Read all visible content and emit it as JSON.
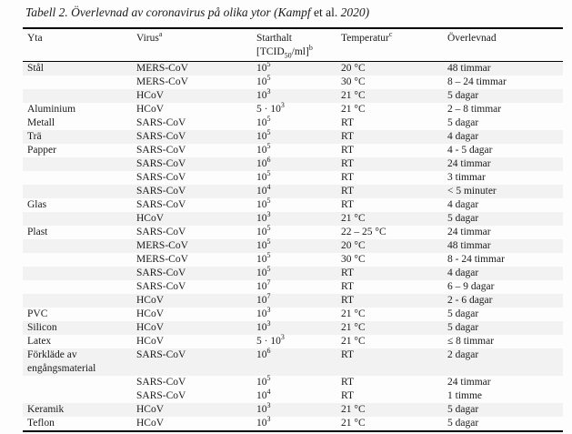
{
  "title": {
    "part1_italic": "Tabell 2. Överlevnad av coronavirus på olika ytor (Kampf ",
    "etal_upright": "et al. ",
    "part2_italic": "2020)"
  },
  "table": {
    "headers": {
      "yta": "Yta",
      "virus": "Virus",
      "virus_sup": "a",
      "starthalt_line1": "Starthalt",
      "starthalt_line2_pre": "[TCID",
      "starthalt_line2_sub": "50",
      "starthalt_line2_post": "/ml]",
      "starthalt_sup": "b",
      "temperatur": "Temperatur",
      "temperatur_sup": "c",
      "overlevnad": "Överlevnad"
    },
    "rows": [
      {
        "yta": "Stål",
        "virus": "MERS-CoV",
        "halt_base": "10",
        "halt_exp": "5",
        "temp": "20 °C",
        "surv": "48 timmar",
        "shaded": true
      },
      {
        "yta": "",
        "virus": "MERS-CoV",
        "halt_base": "10",
        "halt_exp": "5",
        "temp": "30 °C",
        "surv": "8 – 24 timmar",
        "shaded": false
      },
      {
        "yta": "",
        "virus": "HCoV",
        "halt_base": "10",
        "halt_exp": "3",
        "temp": "21 °C",
        "surv": "5 dagar",
        "shaded": true
      },
      {
        "yta": "Aluminium",
        "virus": "HCoV",
        "halt_base": "5 · 10",
        "halt_exp": "3",
        "temp": "21 °C",
        "surv": "2 – 8 timmar",
        "shaded": false
      },
      {
        "yta": "Metall",
        "virus": "SARS-CoV",
        "halt_base": "10",
        "halt_exp": "5",
        "temp": "RT",
        "surv": "5 dagar",
        "shaded": false
      },
      {
        "yta": "Trä",
        "virus": "SARS-CoV",
        "halt_base": "10",
        "halt_exp": "5",
        "temp": "RT",
        "surv": "4 dagar",
        "shaded": true
      },
      {
        "yta": "Papper",
        "virus": "SARS-CoV",
        "halt_base": "10",
        "halt_exp": "5",
        "temp": "RT",
        "surv": "4 - 5 dagar",
        "shaded": false
      },
      {
        "yta": "",
        "virus": "SARS-CoV",
        "halt_base": "10",
        "halt_exp": "6",
        "temp": "RT",
        "surv": "24 timmar",
        "shaded": true
      },
      {
        "yta": "",
        "virus": "SARS-CoV",
        "halt_base": "10",
        "halt_exp": "5",
        "temp": "RT",
        "surv": "3 timmar",
        "shaded": false
      },
      {
        "yta": "",
        "virus": "SARS-CoV",
        "halt_base": "10",
        "halt_exp": "4",
        "temp": "RT",
        "surv": "< 5 minuter",
        "shaded": true
      },
      {
        "yta": "Glas",
        "virus": "SARS-CoV",
        "halt_base": "10",
        "halt_exp": "5",
        "temp": "RT",
        "surv": "4 dagar",
        "shaded": false
      },
      {
        "yta": "",
        "virus": "HCoV",
        "halt_base": "10",
        "halt_exp": "3",
        "temp": "21 °C",
        "surv": "5 dagar",
        "shaded": true
      },
      {
        "yta": "Plast",
        "virus": "SARS-CoV",
        "halt_base": "10",
        "halt_exp": "5",
        "temp": "22 – 25 °C",
        "surv": "24 timmar",
        "shaded": false
      },
      {
        "yta": "",
        "virus": "MERS-CoV",
        "halt_base": "10",
        "halt_exp": "5",
        "temp": "20 °C",
        "surv": "48 timmar",
        "shaded": true
      },
      {
        "yta": "",
        "virus": "MERS-CoV",
        "halt_base": "10",
        "halt_exp": "5",
        "temp": "30 °C",
        "surv": "8 - 24 timmar",
        "shaded": false
      },
      {
        "yta": "",
        "virus": "SARS-CoV",
        "halt_base": "10",
        "halt_exp": "5",
        "temp": "RT",
        "surv": "4 dagar",
        "shaded": true
      },
      {
        "yta": "",
        "virus": "SARS-CoV",
        "halt_base": "10",
        "halt_exp": "7",
        "temp": "RT",
        "surv": "6 – 9 dagar",
        "shaded": false
      },
      {
        "yta": "",
        "virus": "HCoV",
        "halt_base": "10",
        "halt_exp": "7",
        "temp": "RT",
        "surv": "2 - 6 dagar",
        "shaded": true
      },
      {
        "yta": "PVC",
        "virus": "HCoV",
        "halt_base": "10",
        "halt_exp": "3",
        "temp": "21 °C",
        "surv": "5 dagar",
        "shaded": false
      },
      {
        "yta": "Silicon",
        "virus": "HCoV",
        "halt_base": "10",
        "halt_exp": "3",
        "temp": "21 °C",
        "surv": "5 dagar",
        "shaded": true
      },
      {
        "yta": "Latex",
        "virus": "HCoV",
        "halt_base": "5 · 10",
        "halt_exp": "3",
        "temp": "21 °C",
        "surv": "≤ 8 timmar",
        "shaded": false
      },
      {
        "yta": "Förkläde av engångsmaterial",
        "virus": "SARS-CoV",
        "halt_base": "10",
        "halt_exp": "6",
        "temp": "RT",
        "surv": "2 dagar",
        "shaded": true
      },
      {
        "yta": "",
        "virus": "SARS-CoV",
        "halt_base": "10",
        "halt_exp": "5",
        "temp": "RT",
        "surv": "24 timmar",
        "shaded": false
      },
      {
        "yta": "",
        "virus": "SARS-CoV",
        "halt_base": "10",
        "halt_exp": "4",
        "temp": "RT",
        "surv": "1 timme",
        "shaded": false
      },
      {
        "yta": "Keramik",
        "virus": "HCoV",
        "halt_base": "10",
        "halt_exp": "3",
        "temp": "21 °C",
        "surv": "5 dagar",
        "shaded": true
      },
      {
        "yta": "Teflon",
        "virus": "HCoV",
        "halt_base": "10",
        "halt_exp": "3",
        "temp": "21 °C",
        "surv": "5 dagar",
        "shaded": false
      }
    ]
  },
  "colors": {
    "row_shading": "#f2f2f2",
    "border": "#000000",
    "text": "#1a1a1a"
  }
}
